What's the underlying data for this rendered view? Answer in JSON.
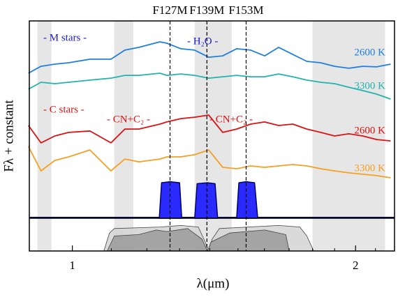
{
  "chart_data": {
    "type": "line",
    "x_label": "λ(μm)",
    "y_label": "Fλ + constant",
    "x_log": true,
    "xlim": [
      0.9,
      2.2
    ],
    "xticks": [
      1,
      2
    ],
    "xminorticks": [
      0.9,
      1.1,
      1.2,
      1.3,
      1.4,
      1.5,
      1.6,
      1.7,
      1.8,
      1.9,
      2.1
    ],
    "ylim": [
      0,
      10
    ],
    "band_color": "#e6e6e6",
    "bands": [
      [
        0.918,
        0.95
      ],
      [
        1.108,
        1.161
      ],
      [
        1.349,
        1.477
      ],
      [
        1.8,
        2.15
      ]
    ],
    "x": [
      0.898,
      0.926,
      0.958,
      0.991,
      1.044,
      1.099,
      1.137,
      1.177,
      1.239,
      1.26,
      1.304,
      1.349,
      1.396,
      1.445,
      1.495,
      1.547,
      1.601,
      1.657,
      1.715,
      1.775,
      1.836,
      1.9,
      1.967,
      2.035,
      2.106,
      2.179
    ],
    "series": [
      {
        "name": "2600 K",
        "color": "#1e7fe0",
        "values": [
          7.35,
          7.7,
          7.81,
          7.88,
          8.06,
          8.06,
          8.52,
          8.66,
          8.94,
          8.87,
          8.59,
          8.52,
          8.16,
          8.23,
          8.59,
          8.52,
          8.23,
          8.66,
          8.3,
          7.95,
          7.88,
          7.7,
          7.6,
          7.7,
          7.67,
          7.81
        ]
      },
      {
        "name": "3300 K",
        "color": "#22b3ad",
        "values": [
          6.54,
          6.89,
          6.82,
          6.89,
          7.0,
          7.1,
          7.24,
          7.24,
          7.35,
          7.24,
          7.31,
          7.24,
          7.1,
          7.17,
          7.24,
          7.17,
          7.17,
          7.31,
          7.17,
          7.0,
          6.89,
          6.82,
          6.64,
          6.47,
          6.29,
          6.04
        ]
      },
      {
        "name": "2600 K",
        "color": "#dd1111",
        "values": [
          4.7,
          3.82,
          4.17,
          4.35,
          4.42,
          3.82,
          4.52,
          4.52,
          4.77,
          4.88,
          5.05,
          5.12,
          5.23,
          4.35,
          4.52,
          4.77,
          4.88,
          4.7,
          4.77,
          4.52,
          4.35,
          4.17,
          4.28,
          4.17,
          3.99,
          3.92
        ]
      },
      {
        "name": "3300 K",
        "color": "#f5a020",
        "values": [
          3.64,
          2.4,
          2.93,
          3.11,
          3.46,
          2.4,
          3.0,
          2.86,
          3.0,
          3.11,
          3.11,
          3.22,
          3.46,
          2.58,
          2.51,
          2.65,
          2.58,
          2.65,
          2.72,
          2.65,
          2.51,
          2.4,
          2.3,
          2.23,
          2.16,
          2.05
        ]
      }
    ],
    "annotations": [
      {
        "text": "- M stars -",
        "color": "#1a1acc"
      },
      {
        "text": "- H₂O -",
        "color": "#1a1acc"
      },
      {
        "text": "- C stars -",
        "color": "#dd1111"
      },
      {
        "text": "- CN+C₂ -",
        "color": "#dd1111"
      },
      {
        "text": "- CN+C₂ -",
        "color": "#dd1111"
      }
    ],
    "filter_color": "#2a2aff",
    "filters": [
      {
        "name": "F127M",
        "center": 1.27,
        "x": [
          1.237,
          1.244,
          1.27,
          1.3,
          1.307
        ],
        "values": [
          0,
          1.8,
          1.85,
          1.8,
          0
        ]
      },
      {
        "name": "F139M",
        "center": 1.39,
        "x": [
          1.349,
          1.357,
          1.392,
          1.418,
          1.427
        ],
        "values": [
          0,
          1.75,
          1.8,
          1.75,
          0
        ]
      },
      {
        "name": "F153M",
        "center": 1.53,
        "x": [
          1.495,
          1.503,
          1.53,
          1.562,
          1.574
        ],
        "values": [
          0,
          1.8,
          1.85,
          1.8,
          0
        ]
      }
    ],
    "transmission": {
      "ylim": [
        0,
        1
      ],
      "curves": [
        {
          "color": "#d4d4d4",
          "x": [
            1.08,
            1.095,
            1.108,
            1.239,
            1.304,
            1.361,
            1.384,
            1.396,
            1.408,
            1.433,
            1.657,
            1.745,
            1.775,
            1.805
          ],
          "values": [
            0,
            0.6,
            0.75,
            0.8,
            0.85,
            0.8,
            0.3,
            0,
            0.4,
            0.75,
            0.85,
            0.8,
            0.5,
            0
          ]
        },
        {
          "color": "#9a9a9a",
          "x": [
            1.089,
            1.108,
            1.177,
            1.228,
            1.26,
            1.326,
            1.373,
            1.392,
            1.404,
            1.47,
            1.601,
            1.686,
            1.7
          ],
          "values": [
            0,
            0.5,
            0.55,
            0.7,
            0.65,
            0.75,
            0.4,
            0,
            0.3,
            0.6,
            0.7,
            0.55,
            0
          ]
        }
      ]
    }
  }
}
